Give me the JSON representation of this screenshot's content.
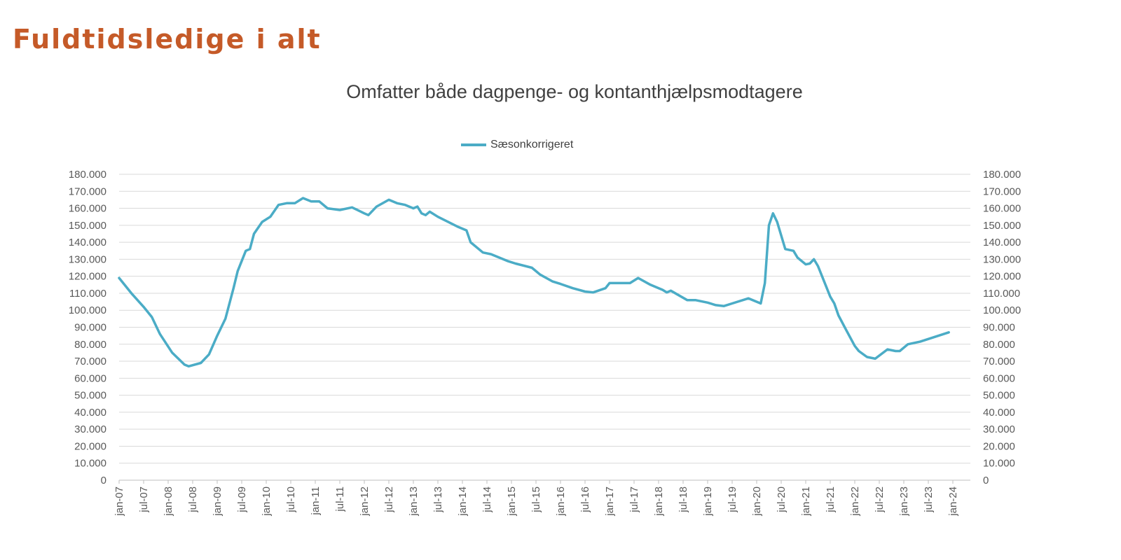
{
  "page": {
    "title": "Fuldtidsledige i alt",
    "title_color": "#c55a28"
  },
  "chart_data": {
    "type": "line",
    "title": "Omfatter både dagpenge- og kontanthjælpsmodtagere",
    "legend_position": "top",
    "grid": true,
    "ylim": [
      0,
      180000
    ],
    "y_ticks": [
      0,
      10000,
      20000,
      30000,
      40000,
      50000,
      60000,
      70000,
      80000,
      90000,
      100000,
      110000,
      120000,
      130000,
      140000,
      150000,
      160000,
      170000,
      180000
    ],
    "y_tick_labels": [
      "0",
      "10.000",
      "20.000",
      "30.000",
      "40.000",
      "50.000",
      "60.000",
      "70.000",
      "80.000",
      "90.000",
      "100.000",
      "110.000",
      "120.000",
      "130.000",
      "140.000",
      "150.000",
      "160.000",
      "170.000",
      "180.000"
    ],
    "x_tick_labels": [
      "jan-07",
      "jul-07",
      "jan-08",
      "jul-08",
      "jan-09",
      "jul-09",
      "jan-10",
      "jul-10",
      "jan-11",
      "jul-11",
      "jan-12",
      "jul-12",
      "jan-13",
      "jul-13",
      "jan-14",
      "jul-14",
      "jan-15",
      "jul-15",
      "jan-16",
      "jul-16",
      "jan-17",
      "jul-17",
      "jan-18",
      "jul-18",
      "jan-19",
      "jul-19",
      "jan-20",
      "jul-20",
      "jan-21",
      "jul-21",
      "jan-22",
      "jul-22",
      "jan-23",
      "jul-23",
      "jan-24"
    ],
    "series": [
      {
        "name": "Sæsonkorrigeret",
        "color": "#4bacc6",
        "x": [
          "2007-01",
          "2007-04",
          "2007-07",
          "2007-09",
          "2007-11",
          "2008-02",
          "2008-05",
          "2008-06",
          "2008-09",
          "2008-11",
          "2009-01",
          "2009-03",
          "2009-05",
          "2009-06",
          "2009-08",
          "2009-09",
          "2009-10",
          "2009-12",
          "2010-02",
          "2010-04",
          "2010-06",
          "2010-08",
          "2010-10",
          "2010-12",
          "2011-02",
          "2011-04",
          "2011-07",
          "2011-10",
          "2012-01",
          "2012-02",
          "2012-04",
          "2012-07",
          "2012-09",
          "2012-11",
          "2013-01",
          "2013-02",
          "2013-03",
          "2013-04",
          "2013-05",
          "2013-07",
          "2013-12",
          "2014-02",
          "2014-03",
          "2014-06",
          "2014-08",
          "2014-12",
          "2015-02",
          "2015-06",
          "2015-08",
          "2015-11",
          "2016-01",
          "2016-04",
          "2016-07",
          "2016-09",
          "2016-12",
          "2017-01",
          "2017-06",
          "2017-08",
          "2017-11",
          "2018-02",
          "2018-03",
          "2018-04",
          "2018-08",
          "2018-10",
          "2019-01",
          "2019-03",
          "2019-05",
          "2019-07",
          "2019-11",
          "2020-02",
          "2020-03",
          "2020-04",
          "2020-05",
          "2020-06",
          "2020-08",
          "2020-10",
          "2020-11",
          "2021-01",
          "2021-02",
          "2021-03",
          "2021-04",
          "2021-07",
          "2021-08",
          "2021-09",
          "2021-11",
          "2022-01",
          "2022-02",
          "2022-04",
          "2022-06",
          "2022-09",
          "2022-11",
          "2022-12",
          "2023-02",
          "2023-05",
          "2023-12"
        ],
        "values": [
          119000,
          110000,
          102000,
          96000,
          86000,
          75000,
          68000,
          67000,
          69000,
          74000,
          85000,
          95000,
          113000,
          123000,
          135000,
          136000,
          145000,
          152000,
          155000,
          162000,
          163000,
          163000,
          166000,
          164000,
          164000,
          160000,
          159000,
          160500,
          157000,
          156000,
          161000,
          165000,
          163000,
          162000,
          160000,
          161000,
          157000,
          156000,
          158000,
          155000,
          149000,
          147000,
          140000,
          134000,
          133000,
          129000,
          127500,
          125000,
          121000,
          117000,
          115500,
          113000,
          111000,
          110500,
          113000,
          116000,
          116000,
          119000,
          115000,
          112000,
          110500,
          111500,
          106000,
          106000,
          104500,
          103000,
          102500,
          104000,
          107000,
          104000,
          116000,
          150000,
          157000,
          152000,
          136000,
          135000,
          131000,
          127000,
          127500,
          130000,
          126000,
          108000,
          104000,
          97000,
          88000,
          79000,
          76000,
          72500,
          71500,
          77000,
          76000,
          76000,
          80000,
          81500,
          87000
        ]
      }
    ]
  }
}
